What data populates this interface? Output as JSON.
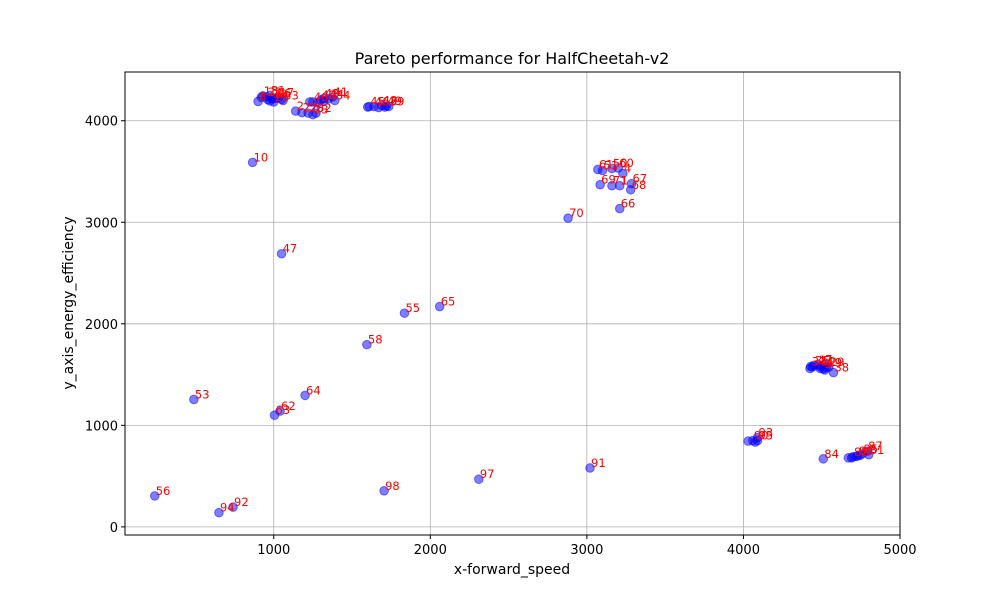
{
  "chart_data": {
    "type": "scatter",
    "title": "Pareto performance for HalfCheetah-v2",
    "xlabel": "x-forward_speed",
    "ylabel": "y_axis_energy_efficiency",
    "xlim": [
      50,
      5000
    ],
    "ylim": [
      -80,
      4480
    ],
    "xticks": [
      1000,
      2000,
      3000,
      4000,
      5000
    ],
    "xtick_labels": [
      "1000",
      "2000",
      "3000",
      "4000",
      "5000"
    ],
    "yticks": [
      0,
      1000,
      2000,
      3000,
      4000
    ],
    "ytick_labels": [
      "0",
      "1000",
      "2000",
      "3000",
      "4000"
    ],
    "grid": true,
    "marker_color": "#0000ff",
    "marker_alpha": 0.5,
    "label_color": "#ff0000",
    "points": [
      {
        "label": "10",
        "x": 865,
        "y": 3590
      },
      {
        "label": "47",
        "x": 1050,
        "y": 2690
      },
      {
        "label": "53",
        "x": 490,
        "y": 1255
      },
      {
        "label": "56",
        "x": 240,
        "y": 305
      },
      {
        "label": "94",
        "x": 650,
        "y": 140
      },
      {
        "label": "92",
        "x": 740,
        "y": 195
      },
      {
        "label": "62",
        "x": 1040,
        "y": 1140
      },
      {
        "label": "63",
        "x": 1005,
        "y": 1100
      },
      {
        "label": "64",
        "x": 1200,
        "y": 1295
      },
      {
        "label": "58",
        "x": 1595,
        "y": 1795
      },
      {
        "label": "55",
        "x": 1835,
        "y": 2105
      },
      {
        "label": "65",
        "x": 2060,
        "y": 2170
      },
      {
        "label": "98",
        "x": 1705,
        "y": 355
      },
      {
        "label": "97",
        "x": 2310,
        "y": 470
      },
      {
        "label": "91",
        "x": 3020,
        "y": 580
      },
      {
        "label": "70",
        "x": 2880,
        "y": 3040
      },
      {
        "label": "61",
        "x": 3070,
        "y": 3520
      },
      {
        "label": "51",
        "x": 3100,
        "y": 3510
      },
      {
        "label": "50",
        "x": 3160,
        "y": 3530
      },
      {
        "label": "60",
        "x": 3200,
        "y": 3535
      },
      {
        "label": "4",
        "x": 3230,
        "y": 3480
      },
      {
        "label": "69",
        "x": 3085,
        "y": 3370
      },
      {
        "label": "71",
        "x": 3160,
        "y": 3360
      },
      {
        "label": "1",
        "x": 3210,
        "y": 3360
      },
      {
        "label": "67",
        "x": 3285,
        "y": 3380
      },
      {
        "label": "68",
        "x": 3280,
        "y": 3320
      },
      {
        "label": "66",
        "x": 3210,
        "y": 3135
      },
      {
        "label": "8",
        "x": 900,
        "y": 4190
      },
      {
        "label": "15",
        "x": 930,
        "y": 4245
      },
      {
        "label": "22",
        "x": 955,
        "y": 4235
      },
      {
        "label": "31",
        "x": 975,
        "y": 4250
      },
      {
        "label": "30",
        "x": 990,
        "y": 4215
      },
      {
        "label": "16",
        "x": 1010,
        "y": 4220
      },
      {
        "label": "17",
        "x": 1030,
        "y": 4230
      },
      {
        "label": "33",
        "x": 1060,
        "y": 4200
      },
      {
        "label": "25",
        "x": 1000,
        "y": 4185
      },
      {
        "label": "2",
        "x": 1140,
        "y": 4095
      },
      {
        "label": "27",
        "x": 1180,
        "y": 4080
      },
      {
        "label": "20",
        "x": 1220,
        "y": 4075
      },
      {
        "label": "23",
        "x": 1250,
        "y": 4060
      },
      {
        "label": "32",
        "x": 1270,
        "y": 4075
      },
      {
        "label": "40",
        "x": 1250,
        "y": 4185
      },
      {
        "label": "42",
        "x": 1300,
        "y": 4205
      },
      {
        "label": "43",
        "x": 1320,
        "y": 4220
      },
      {
        "label": "44",
        "x": 1350,
        "y": 4215
      },
      {
        "label": "41",
        "x": 1375,
        "y": 4235
      },
      {
        "label": "34",
        "x": 1390,
        "y": 4200
      },
      {
        "label": "45",
        "x": 1610,
        "y": 4140
      },
      {
        "label": "46",
        "x": 1640,
        "y": 4140
      },
      {
        "label": "48",
        "x": 1690,
        "y": 4150
      },
      {
        "label": "49",
        "x": 1720,
        "y": 4145
      },
      {
        "label": "39",
        "x": 1735,
        "y": 4140
      },
      {
        "label": "37",
        "x": 4430,
        "y": 1580
      },
      {
        "label": "35",
        "x": 4450,
        "y": 1590
      },
      {
        "label": "11",
        "x": 4475,
        "y": 1595
      },
      {
        "label": "12",
        "x": 4490,
        "y": 1580
      },
      {
        "label": "7",
        "x": 4515,
        "y": 1600
      },
      {
        "label": "9",
        "x": 4510,
        "y": 1555
      },
      {
        "label": "19",
        "x": 4530,
        "y": 1570
      },
      {
        "label": "29",
        "x": 4545,
        "y": 1575
      },
      {
        "label": "38",
        "x": 4575,
        "y": 1520
      },
      {
        "label": "93",
        "x": 4090,
        "y": 880
      },
      {
        "label": "90",
        "x": 4060,
        "y": 850
      },
      {
        "label": "95",
        "x": 4090,
        "y": 850
      },
      {
        "label": "84",
        "x": 4510,
        "y": 670
      },
      {
        "label": "82",
        "x": 4700,
        "y": 690
      },
      {
        "label": "80",
        "x": 4730,
        "y": 700
      },
      {
        "label": "85",
        "x": 4760,
        "y": 720
      },
      {
        "label": "87",
        "x": 4790,
        "y": 745
      },
      {
        "label": "81",
        "x": 4800,
        "y": 710
      }
    ],
    "unlabeled_points": [
      {
        "x": 920,
        "y": 4230
      },
      {
        "x": 960,
        "y": 4210
      },
      {
        "x": 975,
        "y": 4195
      },
      {
        "x": 1050,
        "y": 4210
      },
      {
        "x": 1230,
        "y": 4185
      },
      {
        "x": 1280,
        "y": 4175
      },
      {
        "x": 1320,
        "y": 4195
      },
      {
        "x": 1600,
        "y": 4135
      },
      {
        "x": 1670,
        "y": 4130
      },
      {
        "x": 1710,
        "y": 4135
      },
      {
        "x": 4425,
        "y": 1560
      },
      {
        "x": 4440,
        "y": 1575
      },
      {
        "x": 4490,
        "y": 1560
      },
      {
        "x": 4520,
        "y": 1545
      },
      {
        "x": 4030,
        "y": 845
      },
      {
        "x": 4075,
        "y": 835
      },
      {
        "x": 4670,
        "y": 680
      },
      {
        "x": 4690,
        "y": 680
      },
      {
        "x": 4720,
        "y": 695
      },
      {
        "x": 4745,
        "y": 705
      }
    ]
  }
}
